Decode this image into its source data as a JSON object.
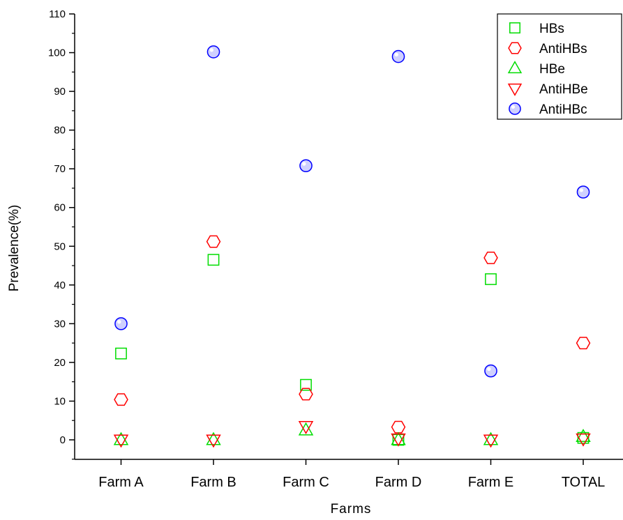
{
  "chart_data": {
    "type": "scatter",
    "title": "",
    "xlabel": "Farms",
    "ylabel": "Prevalence(%)",
    "categories": [
      "Farm A",
      "Farm B",
      "Farm C",
      "Farm D",
      "Farm E",
      "TOTAL"
    ],
    "ylim": [
      -5,
      110
    ],
    "yticks": [
      0,
      10,
      20,
      30,
      40,
      50,
      60,
      70,
      80,
      90,
      100,
      110
    ],
    "grid": false,
    "legend_position": "top-right",
    "series": [
      {
        "name": "HBs",
        "marker": "square",
        "color": "#00dd00",
        "values": [
          22.3,
          46.5,
          14.2,
          0.0,
          41.5,
          0.5
        ]
      },
      {
        "name": "AntiHBs",
        "marker": "hexagon",
        "color": "#ff0000",
        "values": [
          10.4,
          51.2,
          11.8,
          3.3,
          47.0,
          25.0
        ]
      },
      {
        "name": "HBe",
        "marker": "triangle-up",
        "color": "#00dd00",
        "values": [
          0.0,
          0.0,
          2.5,
          0.0,
          0.0,
          0.8
        ]
      },
      {
        "name": "AntiHBe",
        "marker": "triangle-down",
        "color": "#ff0000",
        "values": [
          0.0,
          0.0,
          3.5,
          0.3,
          0.0,
          0.3
        ]
      },
      {
        "name": "AntiHBc",
        "marker": "circle",
        "color": "#0000ff",
        "values": [
          30.0,
          100.2,
          70.8,
          99.0,
          17.8,
          64.0
        ]
      }
    ]
  }
}
